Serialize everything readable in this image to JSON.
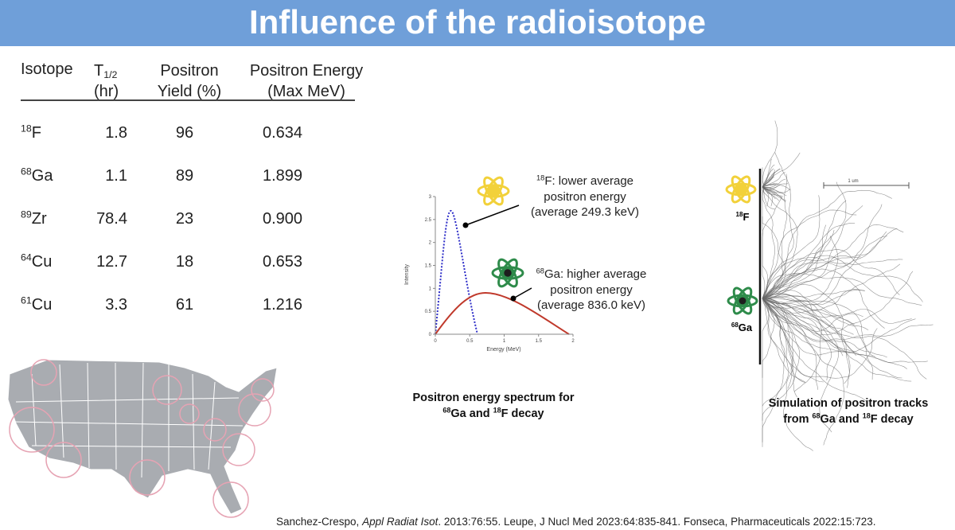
{
  "title": "Influence of the radioisotope",
  "table": {
    "header": [
      {
        "lines": [
          "Isotope"
        ]
      },
      {
        "symbol": "T",
        "subscript": "1/2",
        "unit": "(hr)"
      },
      {
        "lines": [
          "Positron",
          "Yield (%)"
        ]
      },
      {
        "lines": [
          "Positron Energy",
          "(Max MeV)"
        ]
      }
    ],
    "rows": [
      [
        {
          "mass": "18",
          "symbol": "F"
        },
        "1.8",
        "96",
        "0.634"
      ],
      [
        {
          "mass": "68",
          "symbol": "Ga"
        },
        "1.1",
        "89",
        "1.899"
      ],
      [
        {
          "mass": "89",
          "symbol": "Zr"
        },
        "78.4",
        "23",
        "0.900"
      ],
      [
        {
          "mass": "64",
          "symbol": "Cu"
        },
        "12.7",
        "18",
        "0.653"
      ],
      [
        {
          "mass": "61",
          "symbol": "Cu"
        },
        "3.3",
        "61",
        "1.216"
      ]
    ]
  },
  "spectrum": {
    "ylabel": "Intensity",
    "xlabel": "Energy (MeV)",
    "xlim": [
      0,
      2
    ],
    "ylim": [
      0,
      3
    ],
    "xticks": [
      0,
      0.5,
      1,
      1.5,
      2
    ],
    "yticks": [
      0,
      0.5,
      1,
      1.5,
      2,
      2.5,
      3
    ],
    "annotations": [
      {
        "mass": "18",
        "lines": [
          "F: lower average",
          "positron energy",
          "(average 249.3 keV)"
        ]
      },
      {
        "mass": "68",
        "lines": [
          "Ga: higher average",
          "positron energy",
          "(average 836.0 keV)"
        ]
      }
    ],
    "caption": {
      "line1": "Positron energy spectrum for",
      "line2": [
        {
          "sup": "68"
        },
        "Ga and ",
        {
          "sup": "18"
        },
        "F decay"
      ]
    }
  },
  "tracks": {
    "scale_label": "1 um",
    "labels": [
      {
        "sup": "18",
        "text": "F"
      },
      {
        "sup": "68",
        "text": "Ga"
      }
    ],
    "caption": {
      "line1": "Simulation of positron tracks",
      "line2": [
        "from ",
        {
          "sup": "68"
        },
        "Ga and ",
        {
          "sup": "18"
        },
        "F decay"
      ]
    }
  },
  "citation": [
    "Sanchez-Crespo, ",
    {
      "italic": "Appl Radiat Isot"
    },
    ". 2013:76:55.  Leupe, J Nucl Med 2023:64:835-841.  Fonseca, Pharmaceuticals 2022:15:723."
  ]
}
